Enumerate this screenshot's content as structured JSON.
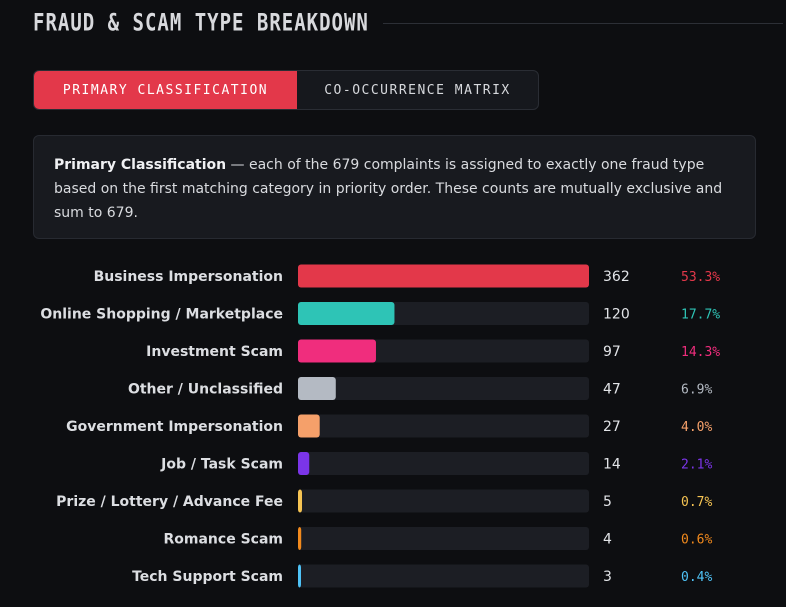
{
  "header": {
    "title": "FRAUD & SCAM TYPE BREAKDOWN"
  },
  "tabs": [
    {
      "label": "PRIMARY CLASSIFICATION",
      "active": true
    },
    {
      "label": "CO-OCCURRENCE MATRIX",
      "active": false
    }
  ],
  "info": {
    "bold": "Primary Classification",
    "text": " — each of the 679 complaints is assigned to exactly one fraud type based on the first matching category in priority order. These counts are mutually exclusive and sum to 679."
  },
  "colors": {
    "background": "#0d0e11",
    "track": "#1c1e24",
    "accent": "#e3384a"
  },
  "chart_data": {
    "type": "bar",
    "orientation": "horizontal",
    "total": 679,
    "categories": [
      "Business Impersonation",
      "Online Shopping / Marketplace",
      "Investment Scam",
      "Other / Unclassified",
      "Government Impersonation",
      "Job / Task Scam",
      "Prize / Lottery / Advance Fee",
      "Romance Scam",
      "Tech Support Scam"
    ],
    "values": [
      362,
      120,
      97,
      47,
      27,
      14,
      5,
      4,
      3
    ],
    "percent_labels": [
      "53.3%",
      "17.7%",
      "14.3%",
      "6.9%",
      "4.0%",
      "2.1%",
      "0.7%",
      "0.6%",
      "0.4%"
    ],
    "colors": [
      "#e3384a",
      "#2ec4b6",
      "#f02d7d",
      "#b4bac3",
      "#f5a06a",
      "#7b35e8",
      "#f6c453",
      "#f28a1d",
      "#4fc3f7"
    ],
    "percent_colors": [
      "#e3384a",
      "#2ec4b6",
      "#f02d7d",
      "#b4bac3",
      "#f5a06a",
      "#7b35e8",
      "#f6c453",
      "#f28a1d",
      "#4fc3f7"
    ],
    "xlim": [
      0,
      362
    ]
  }
}
